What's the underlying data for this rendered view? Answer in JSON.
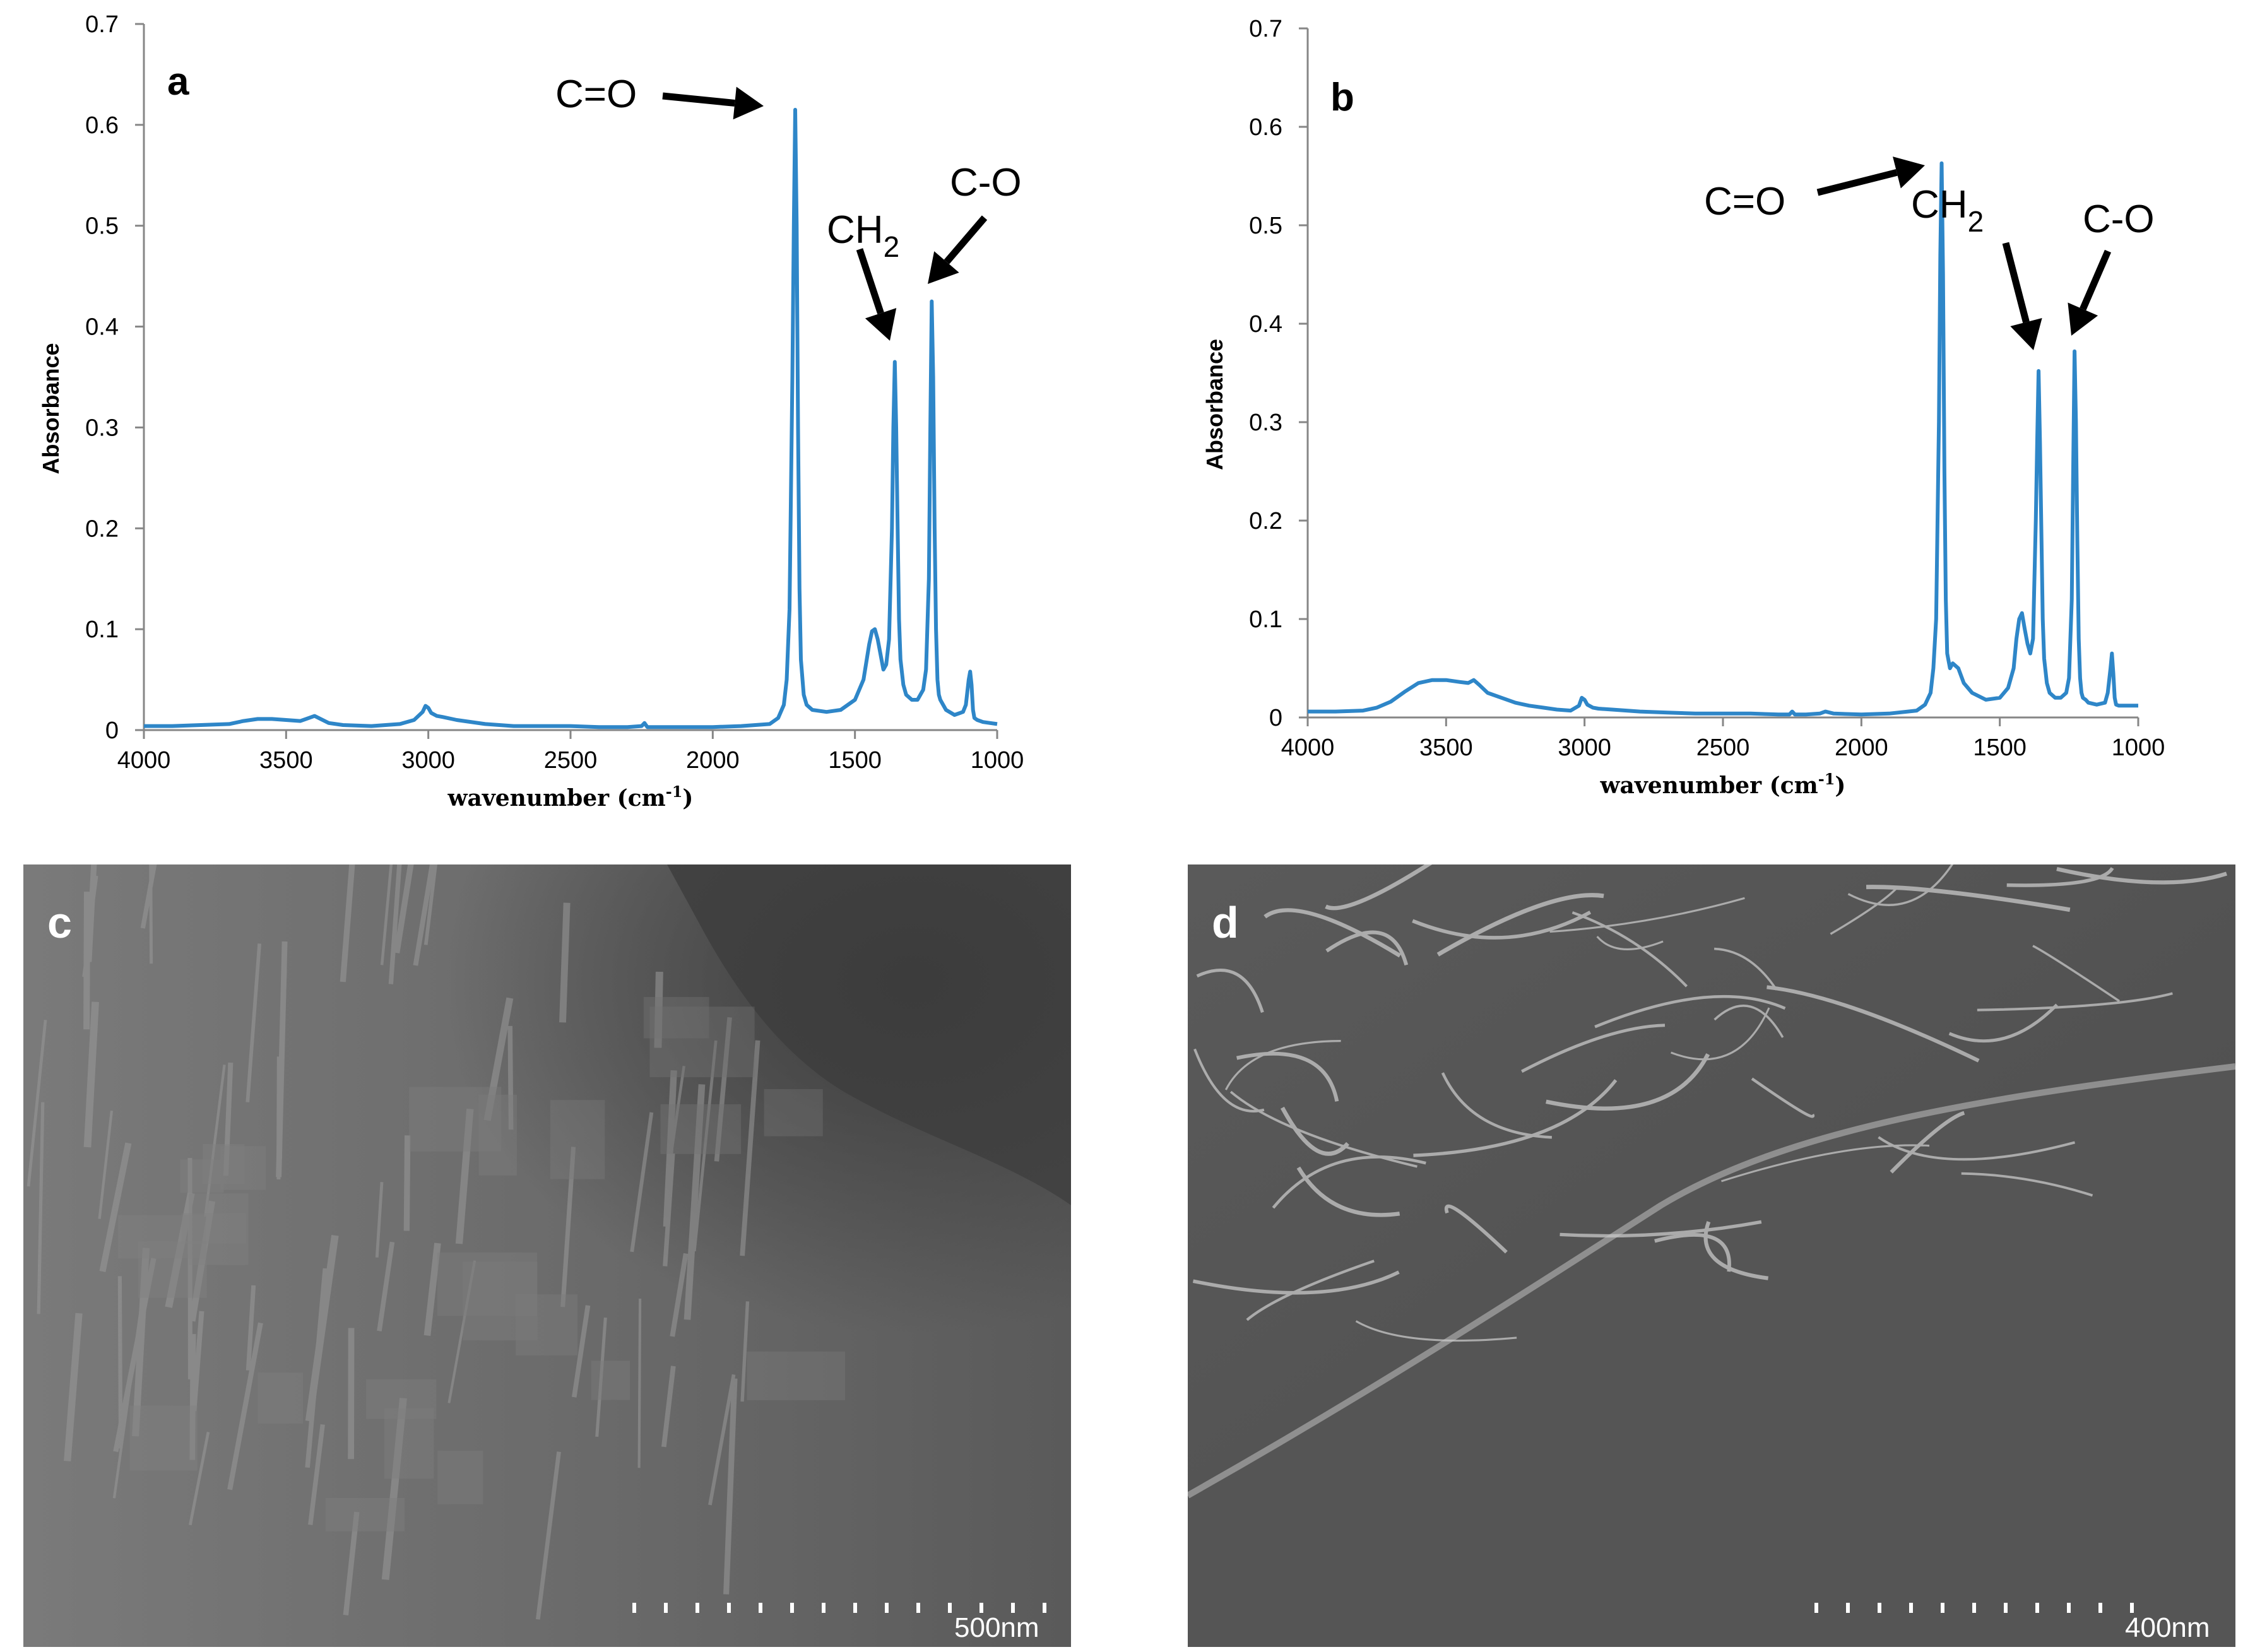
{
  "chart_data": [
    {
      "panel": "a",
      "type": "line",
      "xlabel": "wavenumber (cm-1)",
      "ylabel": "Absorbance",
      "xlim": [
        4000,
        1000
      ],
      "ylim": [
        0,
        0.7
      ],
      "x_ticks": [
        "4000",
        "3500",
        "3000",
        "2500",
        "2000",
        "1500",
        "1000"
      ],
      "y_ticks": [
        "0",
        "0.1",
        "0.2",
        "0.3",
        "0.4",
        "0.5",
        "0.6",
        "0.7"
      ],
      "grid": false,
      "line_color": "#2e86c8",
      "series": [
        {
          "x": [
            4000,
            3900,
            3800,
            3700,
            3650,
            3600,
            3550,
            3500,
            3450,
            3420,
            3400,
            3350,
            3300,
            3200,
            3100,
            3050,
            3020,
            3010,
            3000,
            2990,
            2970,
            2950,
            2900,
            2800,
            2700,
            2600,
            2500,
            2400,
            2300,
            2250,
            2240,
            2230,
            2200,
            2100,
            2000,
            1900,
            1800,
            1770,
            1750,
            1740,
            1730,
            1720,
            1715,
            1710,
            1705,
            1700,
            1695,
            1690,
            1680,
            1670,
            1650,
            1600,
            1550,
            1500,
            1470,
            1450,
            1440,
            1430,
            1420,
            1410,
            1400,
            1390,
            1380,
            1370,
            1365,
            1360,
            1355,
            1350,
            1345,
            1340,
            1330,
            1320,
            1300,
            1280,
            1260,
            1250,
            1240,
            1235,
            1230,
            1225,
            1220,
            1215,
            1210,
            1205,
            1200,
            1190,
            1180,
            1150,
            1120,
            1110,
            1100,
            1095,
            1090,
            1085,
            1080,
            1070,
            1050,
            1000
          ],
          "y": [
            0.004,
            0.004,
            0.005,
            0.006,
            0.009,
            0.011,
            0.011,
            0.01,
            0.009,
            0.012,
            0.014,
            0.007,
            0.005,
            0.004,
            0.006,
            0.01,
            0.018,
            0.024,
            0.022,
            0.017,
            0.014,
            0.013,
            0.01,
            0.006,
            0.004,
            0.004,
            0.004,
            0.003,
            0.003,
            0.004,
            0.007,
            0.003,
            0.003,
            0.003,
            0.003,
            0.004,
            0.006,
            0.012,
            0.025,
            0.05,
            0.12,
            0.35,
            0.5,
            0.615,
            0.5,
            0.3,
            0.14,
            0.07,
            0.035,
            0.025,
            0.02,
            0.018,
            0.02,
            0.03,
            0.05,
            0.085,
            0.098,
            0.1,
            0.09,
            0.075,
            0.06,
            0.065,
            0.09,
            0.2,
            0.3,
            0.365,
            0.3,
            0.2,
            0.11,
            0.07,
            0.045,
            0.035,
            0.03,
            0.03,
            0.04,
            0.06,
            0.15,
            0.3,
            0.425,
            0.35,
            0.2,
            0.1,
            0.05,
            0.035,
            0.03,
            0.025,
            0.02,
            0.015,
            0.018,
            0.025,
            0.05,
            0.058,
            0.045,
            0.02,
            0.012,
            0.01,
            0.008,
            0.006
          ]
        }
      ],
      "annotations": [
        {
          "text": "C=O"
        },
        {
          "text": "CH2"
        },
        {
          "text": "C-O"
        }
      ]
    },
    {
      "panel": "b",
      "type": "line",
      "xlabel": "wavenumber (cm-1)",
      "ylabel": "Absorbance",
      "xlim": [
        4000,
        1000
      ],
      "ylim": [
        0,
        0.7
      ],
      "x_ticks": [
        "4000",
        "3500",
        "3000",
        "2500",
        "2000",
        "1500",
        "1000"
      ],
      "y_ticks": [
        "0",
        "0.1",
        "0.2",
        "0.3",
        "0.4",
        "0.5",
        "0.6",
        "0.7"
      ],
      "grid": false,
      "line_color": "#2e86c8",
      "series": [
        {
          "x": [
            4000,
            3900,
            3800,
            3750,
            3700,
            3650,
            3600,
            3550,
            3500,
            3450,
            3420,
            3400,
            3380,
            3350,
            3300,
            3250,
            3200,
            3150,
            3100,
            3050,
            3020,
            3010,
            3000,
            2990,
            2970,
            2950,
            2900,
            2800,
            2700,
            2600,
            2500,
            2400,
            2300,
            2260,
            2250,
            2240,
            2200,
            2150,
            2130,
            2100,
            2000,
            1900,
            1800,
            1770,
            1750,
            1740,
            1730,
            1720,
            1715,
            1710,
            1705,
            1700,
            1695,
            1690,
            1680,
            1670,
            1650,
            1630,
            1600,
            1550,
            1500,
            1470,
            1450,
            1440,
            1430,
            1420,
            1410,
            1400,
            1390,
            1380,
            1370,
            1365,
            1360,
            1355,
            1350,
            1345,
            1340,
            1330,
            1320,
            1300,
            1280,
            1260,
            1250,
            1240,
            1235,
            1230,
            1225,
            1220,
            1215,
            1210,
            1205,
            1200,
            1190,
            1180,
            1150,
            1120,
            1110,
            1100,
            1095,
            1090,
            1085,
            1080,
            1070,
            1050,
            1000
          ],
          "y": [
            0.006,
            0.006,
            0.007,
            0.01,
            0.016,
            0.026,
            0.035,
            0.038,
            0.038,
            0.036,
            0.035,
            0.038,
            0.033,
            0.025,
            0.02,
            0.015,
            0.012,
            0.01,
            0.008,
            0.007,
            0.012,
            0.02,
            0.018,
            0.013,
            0.01,
            0.009,
            0.008,
            0.006,
            0.005,
            0.004,
            0.004,
            0.004,
            0.003,
            0.003,
            0.006,
            0.003,
            0.003,
            0.004,
            0.006,
            0.004,
            0.003,
            0.004,
            0.007,
            0.013,
            0.025,
            0.05,
            0.1,
            0.3,
            0.47,
            0.563,
            0.45,
            0.25,
            0.12,
            0.065,
            0.05,
            0.055,
            0.05,
            0.035,
            0.025,
            0.018,
            0.02,
            0.03,
            0.05,
            0.08,
            0.1,
            0.106,
            0.09,
            0.075,
            0.065,
            0.08,
            0.2,
            0.28,
            0.352,
            0.28,
            0.19,
            0.1,
            0.06,
            0.035,
            0.025,
            0.02,
            0.02,
            0.025,
            0.04,
            0.12,
            0.25,
            0.372,
            0.3,
            0.18,
            0.08,
            0.04,
            0.025,
            0.02,
            0.018,
            0.015,
            0.013,
            0.015,
            0.025,
            0.05,
            0.065,
            0.045,
            0.02,
            0.013,
            0.012,
            0.012,
            0.012
          ]
        }
      ],
      "annotations": [
        {
          "text": "C=O"
        },
        {
          "text": "CH2"
        },
        {
          "text": "C-O"
        }
      ]
    }
  ],
  "panels": {
    "a_label": "a",
    "b_label": "b",
    "c_label": "c",
    "d_label": "d"
  },
  "sem": {
    "c_scale": "500nm",
    "d_scale": "400nm"
  }
}
